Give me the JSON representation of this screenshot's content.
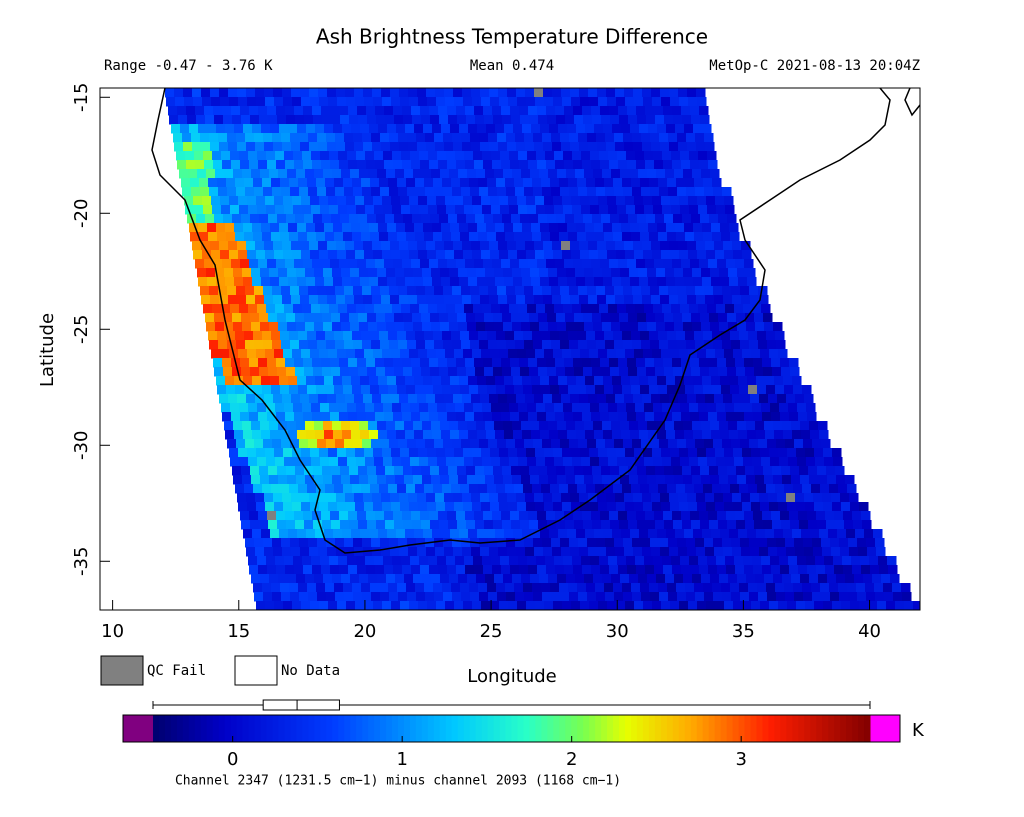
{
  "title": "Ash Brightness Temperature Difference",
  "range_label": "Range -0.47 - 3.76 K",
  "mean_label": "Mean 0.474",
  "satellite_label": "MetOp-C 2021-08-13 20:04Z",
  "map": {
    "xlabel": "Longitude",
    "ylabel": "Latitude",
    "xlim": [
      9.5,
      42
    ],
    "ylim": [
      -37.1,
      -14.6
    ],
    "xticks": [
      10,
      15,
      20,
      25,
      30,
      35,
      40
    ],
    "yticks": [
      -15,
      -20,
      -25,
      -30,
      -35
    ]
  },
  "legend": [
    {
      "label": "QC Fail",
      "color": "#808080"
    },
    {
      "label": "No Data",
      "color": "#ffffff"
    }
  ],
  "colorbar": {
    "unit": "K",
    "clim": [
      -0.47,
      3.76
    ],
    "ticks": [
      0,
      1,
      2,
      3
    ],
    "under_color": "#800080",
    "over_color": "#ff00ff",
    "box": {
      "min": -0.47,
      "q1": 0.18,
      "median": 0.38,
      "q3": 0.63,
      "max": 3.76
    }
  },
  "footer": "Channel 2347 (1231.5 cm−1) minus channel 2093 (1168 cm−1)"
}
